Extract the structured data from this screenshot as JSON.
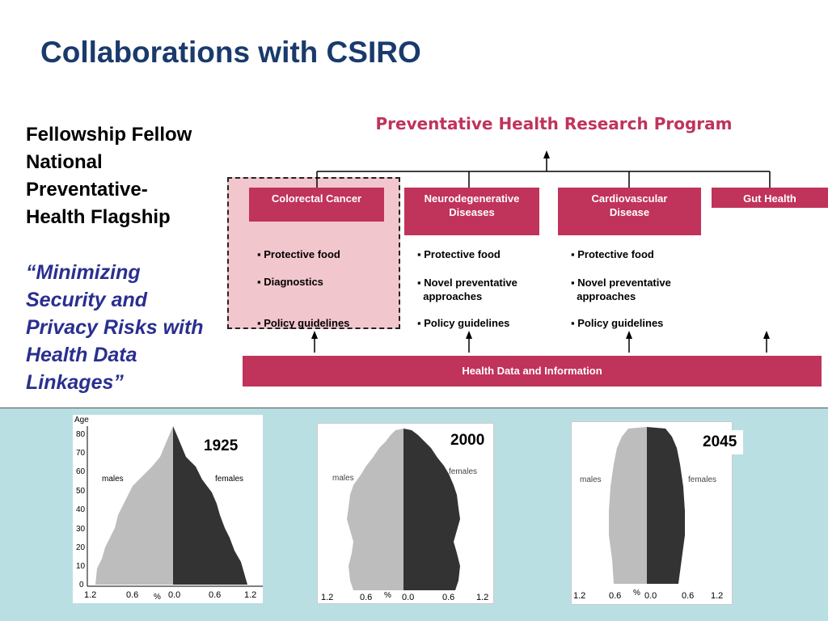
{
  "title": "Collaborations with CSIRO",
  "left": {
    "line1": "Fellowship Fellow",
    "line2": "National Preventative-",
    "line3": "Health Flagship",
    "quote": "“Minimizing Security and Privacy Risks with Health Data Linkages”"
  },
  "program": {
    "title": "Preventative Health Research Program",
    "columns": [
      {
        "label": "Colorectal Cancer",
        "bullets": [
          "▪ Protective food",
          "▪ Diagnostics",
          "▪ Policy guidelines"
        ]
      },
      {
        "label": "Neurodegenerative\nDiseases",
        "bullets": [
          "▪ Protective food",
          "▪ Novel preventative\n  approaches",
          "▪ Policy guidelines"
        ]
      },
      {
        "label": "Cardiovascular\nDisease",
        "bullets": [
          "▪ Protective food",
          "▪ Novel preventative\n  approaches",
          "▪ Policy guidelines"
        ]
      },
      {
        "label": "Gut Health"
      }
    ],
    "base": "Health Data and Information"
  },
  "pyramids": [
    {
      "year": "1925",
      "males": "males",
      "females": "females",
      "age_label": "Age",
      "age_ticks": [
        "80",
        "70",
        "60",
        "50",
        "40",
        "30",
        "20",
        "10",
        "0"
      ],
      "x_ticks": [
        "1.2",
        "0.6",
        "0.0",
        "0.6",
        "1.2"
      ],
      "pct": "%"
    },
    {
      "year": "2000",
      "males": "males",
      "females": "females",
      "x_ticks": [
        "1.2",
        "0.6",
        "0.0",
        "0.6",
        "1.2"
      ],
      "pct": "%"
    },
    {
      "year": "2045",
      "males": "males",
      "females": "females",
      "x_ticks": [
        "1.2",
        "0.6",
        "0.0",
        "0.6",
        "1.2"
      ],
      "pct": "%"
    }
  ],
  "colors": {
    "title": "#1a3a6c",
    "accent": "#c0335a",
    "quote": "#2a2f8f",
    "panel": "#b9dfe3",
    "male": "#bdbdbd",
    "female": "#333333"
  }
}
